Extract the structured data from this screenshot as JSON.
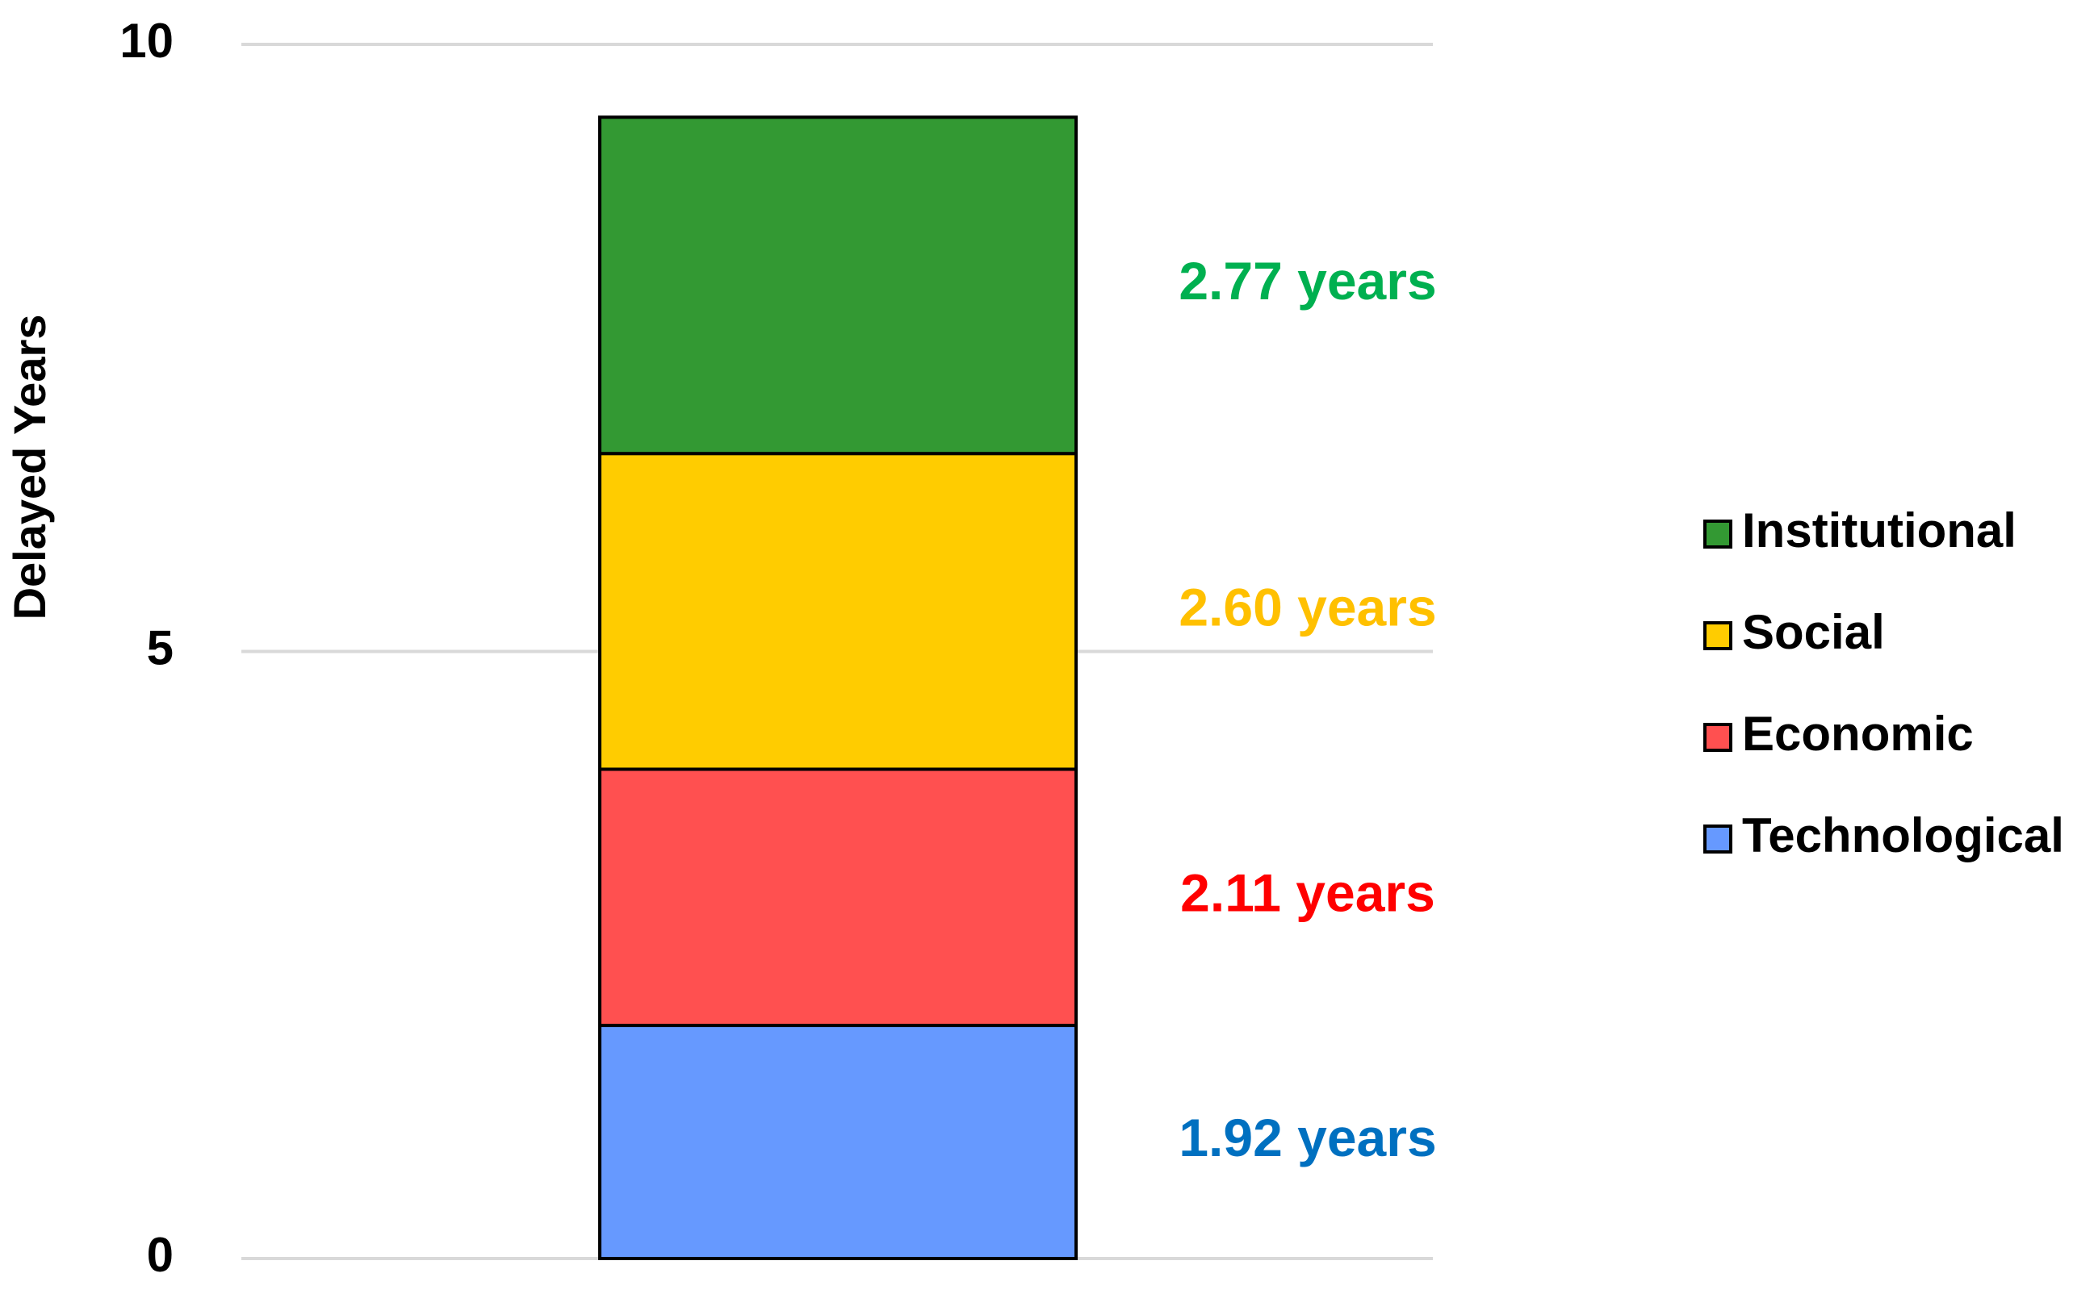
{
  "chart_data": {
    "type": "stacked_bar",
    "y_label": "Delayed Years",
    "categories": [
      null
    ],
    "series": [
      {
        "name": "Technological",
        "color": "#6699ff",
        "label_color": "#0070c0",
        "values": [
          1.92
        ],
        "value_labels": [
          "1.92 years"
        ]
      },
      {
        "name": "Economic",
        "color": "#ff5050",
        "label_color": "#ff0000",
        "values": [
          2.11
        ],
        "value_labels": [
          "2.11 years"
        ]
      },
      {
        "name": "Social",
        "color": "#ffcc00",
        "label_color": "#ffc000",
        "values": [
          2.6
        ],
        "value_labels": [
          "2.60 years"
        ]
      },
      {
        "name": "Institutional",
        "color": "#339933",
        "label_color": "#00b050",
        "values": [
          2.77
        ],
        "value_labels": [
          "2.77 years"
        ]
      }
    ],
    "ylim": [
      0,
      10
    ],
    "yticks": [
      0,
      5,
      10
    ],
    "grid": true,
    "legend": "right"
  }
}
